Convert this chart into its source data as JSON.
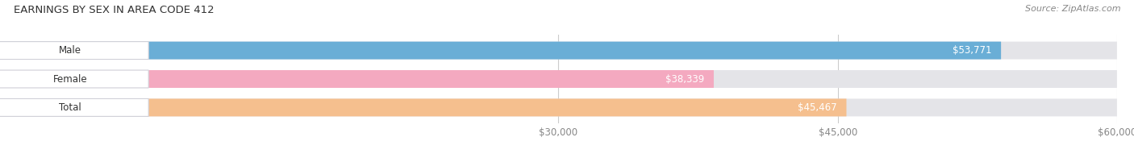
{
  "title": "EARNINGS BY SEX IN AREA CODE 412",
  "source": "Source: ZipAtlas.com",
  "categories": [
    "Male",
    "Female",
    "Total"
  ],
  "values": [
    53771,
    38339,
    45467
  ],
  "bar_colors": [
    "#6aaed6",
    "#f4a9c0",
    "#f5bf8e"
  ],
  "bar_bg_color": "#e4e4e8",
  "value_labels": [
    "$53,771",
    "$38,339",
    "$45,467"
  ],
  "data_min": 0,
  "xlim_min": 30000,
  "xlim_max": 60000,
  "xticks": [
    30000,
    45000,
    60000
  ],
  "xtick_labels": [
    "$30,000",
    "$45,000",
    "$60,000"
  ],
  "title_fontsize": 9.5,
  "label_fontsize": 8.5,
  "source_fontsize": 8,
  "bar_height": 0.62,
  "background_color": "#ffffff",
  "fig_width": 14.06,
  "fig_height": 1.96
}
